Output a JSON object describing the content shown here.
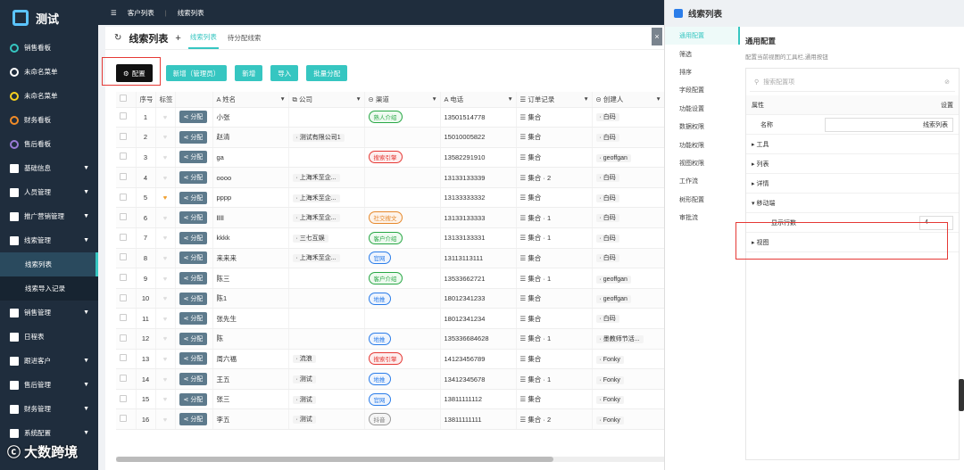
{
  "app": {
    "title": "测试"
  },
  "sidebar": {
    "items": [
      {
        "label": "销售看板",
        "color": "#36c6c1",
        "arrow": false
      },
      {
        "label": "未命名菜单",
        "color": "#ffffff",
        "arrow": false
      },
      {
        "label": "未命名菜单",
        "color": "#f5d020",
        "arrow": false
      },
      {
        "label": "财务看板",
        "color": "#f28c28",
        "arrow": false
      },
      {
        "label": "售后看板",
        "color": "#9a7bd6",
        "arrow": false
      },
      {
        "label": "基础信息",
        "color": "#ffffff",
        "arrow": true
      },
      {
        "label": "人员管理",
        "color": "#ffffff",
        "arrow": true
      },
      {
        "label": "推广营销管理",
        "color": "#ffffff",
        "arrow": true
      },
      {
        "label": "线索管理",
        "color": "#ffffff",
        "arrow": true
      },
      {
        "label": "线索列表",
        "sub": true,
        "active": true
      },
      {
        "label": "线索导入记录",
        "sub": true
      },
      {
        "label": "销售管理",
        "color": "#ffffff",
        "arrow": true
      },
      {
        "label": "日程表",
        "color": "#ffffff",
        "arrow": false
      },
      {
        "label": "跟进客户",
        "color": "#ffffff",
        "arrow": true
      },
      {
        "label": "售后管理",
        "color": "#ffffff",
        "arrow": true
      },
      {
        "label": "财务管理",
        "color": "#ffffff",
        "arrow": true
      },
      {
        "label": "系统配置",
        "color": "#ffffff",
        "arrow": true
      }
    ]
  },
  "topbar": {
    "crumb1": "客户列表",
    "crumb2": "线索列表"
  },
  "main": {
    "title": "线索列表",
    "add": "+",
    "tab_on": "线索列表",
    "tab_off": "待分配线索",
    "close": "×"
  },
  "toolbar": {
    "config": "配置",
    "new_admin": "新增（管理员）",
    "new": "新增",
    "import": "导入",
    "batch": "批量分配"
  },
  "table": {
    "headers": [
      "序号",
      "标签",
      "",
      "姓名",
      "公司",
      "渠道",
      "电话",
      "订单记录",
      "创建人"
    ],
    "assign_label": "分配",
    "rows": [
      {
        "no": "1",
        "name": "小张",
        "company": "",
        "channel": "熟人介绍",
        "ch": "g",
        "phone": "13501514778",
        "order": "集合",
        "creator": "白码",
        "heart": false
      },
      {
        "no": "2",
        "name": "赵清",
        "company": "测试有限公司1",
        "channel": "",
        "ch": "",
        "phone": "15010005822",
        "order": "集合",
        "creator": "白码",
        "heart": false
      },
      {
        "no": "3",
        "name": "ga",
        "company": "",
        "channel": "搜索引擎",
        "ch": "r",
        "phone": "13582291910",
        "order": "集合",
        "creator": "geoffgan",
        "heart": false
      },
      {
        "no": "4",
        "name": "oooo",
        "company": "上海禾至企...",
        "channel": "",
        "ch": "",
        "phone": "13133133339",
        "order": "集合 · 2",
        "creator": "白码",
        "heart": false
      },
      {
        "no": "5",
        "name": "pppp",
        "company": "上海禾至企...",
        "channel": "",
        "ch": "",
        "phone": "13133333332",
        "order": "集合",
        "creator": "白码",
        "heart": true
      },
      {
        "no": "6",
        "name": "lllll",
        "company": "上海禾至企...",
        "channel": "社交搜文",
        "ch": "o",
        "phone": "13133133333",
        "order": "集合 · 1",
        "creator": "白码",
        "heart": false
      },
      {
        "no": "7",
        "name": "kkkk",
        "company": "三七互娱",
        "channel": "客户介绍",
        "ch": "g",
        "phone": "13133133331",
        "order": "集合 · 1",
        "creator": "白码",
        "heart": false
      },
      {
        "no": "8",
        "name": "来来来",
        "company": "上海禾至企...",
        "channel": "官网",
        "ch": "b",
        "phone": "13113113111",
        "order": "集合",
        "creator": "白码",
        "heart": false
      },
      {
        "no": "9",
        "name": "陈三",
        "company": "",
        "channel": "客户介绍",
        "ch": "g",
        "phone": "13533662721",
        "order": "集合 · 1",
        "creator": "geoffgan",
        "heart": false
      },
      {
        "no": "10",
        "name": "陈1",
        "company": "",
        "channel": "地推",
        "ch": "b",
        "phone": "18012341233",
        "order": "集合",
        "creator": "geoffgan",
        "heart": false
      },
      {
        "no": "11",
        "name": "张先生",
        "company": "",
        "channel": "",
        "ch": "",
        "phone": "18012341234",
        "order": "集合",
        "creator": "白码",
        "heart": false
      },
      {
        "no": "12",
        "name": "陈",
        "company": "",
        "channel": "地推",
        "ch": "b",
        "phone": "135336684628",
        "order": "集合 · 1",
        "creator": "墨教师节活...",
        "heart": false
      },
      {
        "no": "13",
        "name": "周六福",
        "company": "流浪",
        "channel": "搜索引擎",
        "ch": "r",
        "phone": "14123456789",
        "order": "集合",
        "creator": "Fonky",
        "heart": false
      },
      {
        "no": "14",
        "name": "王五",
        "company": "测试",
        "channel": "地推",
        "ch": "b",
        "phone": "13412345678",
        "order": "集合 · 1",
        "creator": "Fonky",
        "heart": false
      },
      {
        "no": "15",
        "name": "张三",
        "company": "测试",
        "channel": "官网",
        "ch": "b",
        "phone": "13811111112",
        "order": "集合",
        "creator": "Fonky",
        "heart": false
      },
      {
        "no": "16",
        "name": "李五",
        "company": "测试",
        "channel": "抖音",
        "ch": "gr",
        "phone": "13811111111",
        "order": "集合 · 2",
        "creator": "Fonky",
        "heart": false
      }
    ]
  },
  "panel": {
    "title": "线索列表",
    "nav": [
      "通用配置",
      "筛选",
      "排序",
      "字段配置",
      "功能设置",
      "数据权限",
      "功能权限",
      "视图权限",
      "工作流",
      "树形配置",
      "审批流"
    ],
    "section_title": "通用配置",
    "section_desc": "配置当前视图的工具栏,通用按钮",
    "search_placeholder": "搜索配置项",
    "col_attr": "属性",
    "col_setting": "设置",
    "name_label": "名称",
    "name_value": "线索列表",
    "groups": [
      "工具",
      "列表",
      "详情",
      "移动端",
      "视图"
    ],
    "rows_label": "显示行数",
    "rows_value": "4"
  },
  "watermark": "大数跨境",
  "colors": {
    "accent": "#36c6c1",
    "sidebar": "#1f2d3d",
    "highlight": "#e53935"
  }
}
